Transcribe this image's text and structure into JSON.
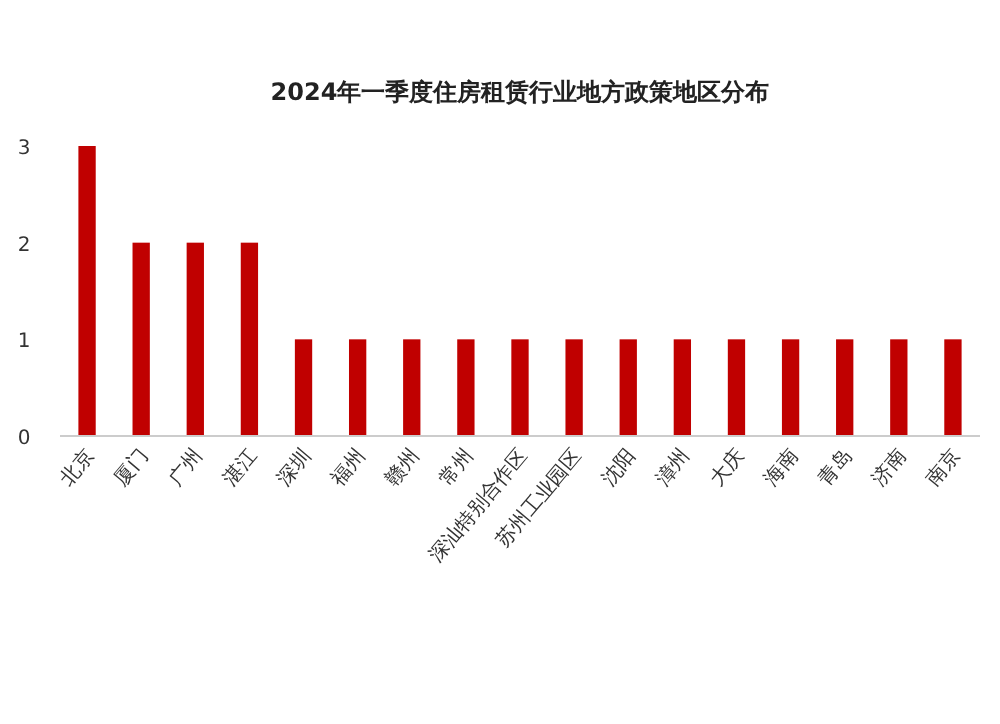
{
  "chart_data": {
    "type": "bar",
    "title": "2024年一季度住房租赁行业地方政策地区分布",
    "categories": [
      "北京",
      "厦门",
      "广州",
      "湛江",
      "深圳",
      "福州",
      "赣州",
      "常州",
      "深汕特别合作区",
      "苏州工业园区",
      "沈阳",
      "漳州",
      "大庆",
      "海南",
      "青岛",
      "济南",
      "南京"
    ],
    "values": [
      3,
      2,
      2,
      2,
      1,
      1,
      1,
      1,
      1,
      1,
      1,
      1,
      1,
      1,
      1,
      1,
      1
    ],
    "color": "#c00000",
    "ylim": [
      0,
      3
    ],
    "yticks": [
      0,
      1,
      2,
      3
    ]
  }
}
